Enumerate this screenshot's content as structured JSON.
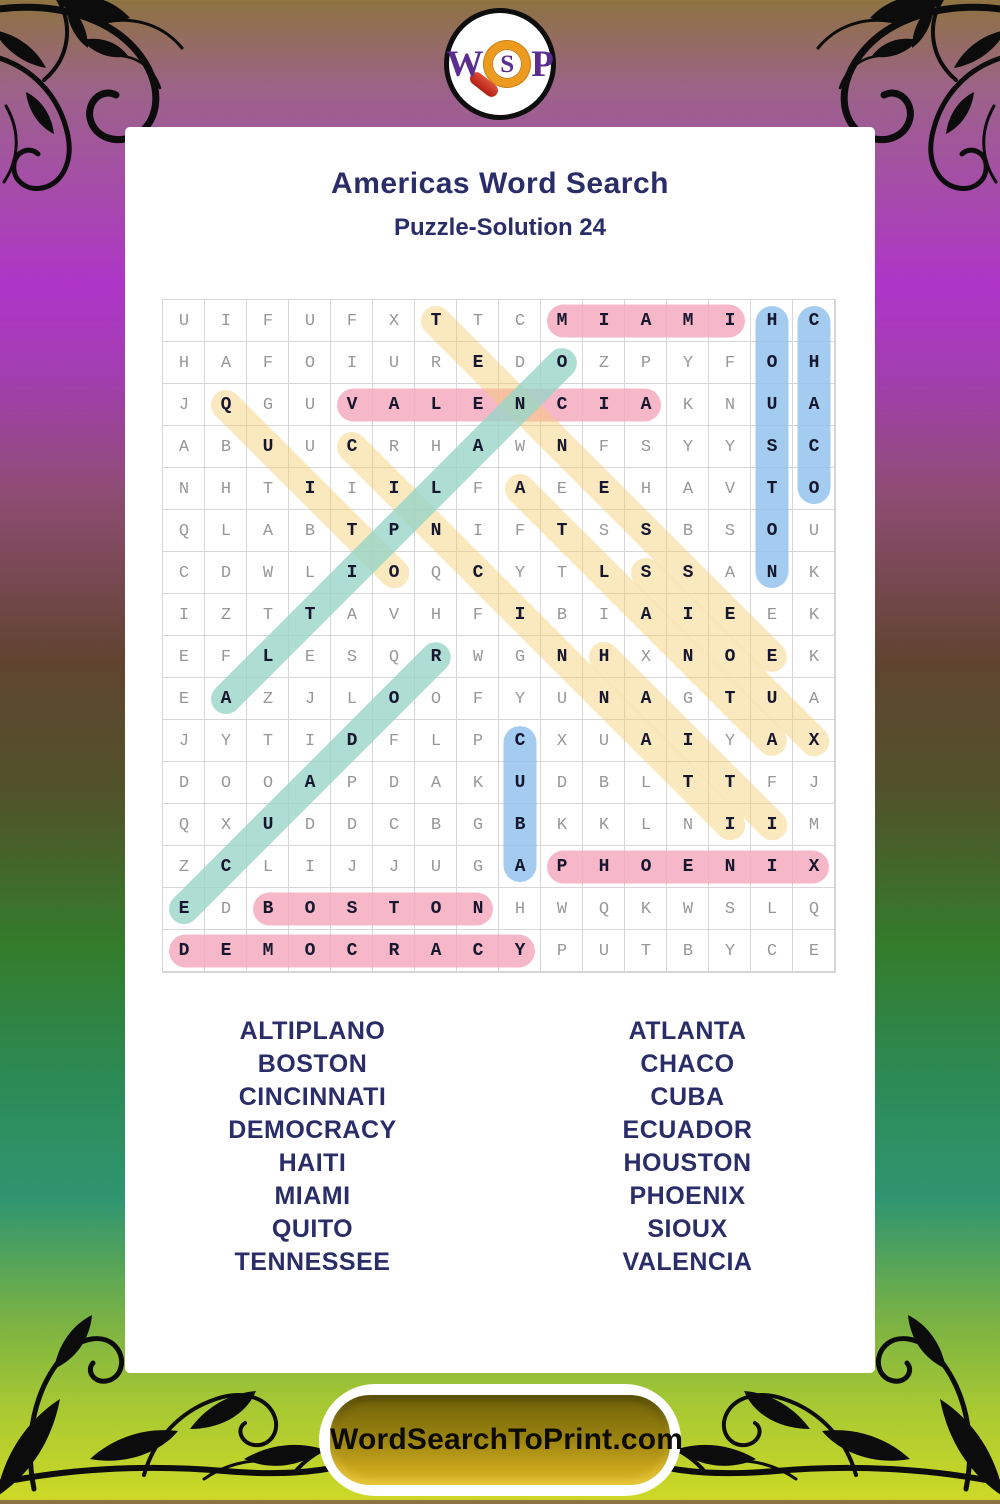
{
  "logo": {
    "letters": {
      "w": "W",
      "s": "S",
      "p": "P"
    }
  },
  "header": {
    "title": "Americas Word Search",
    "subtitle": "Puzzle-Solution 24"
  },
  "grid": {
    "size": 16,
    "rows": [
      "UIFUFXTTCMIAMIHC",
      "HAFOIUREDOZPYFOH",
      "JQGUVALENCIAKNUA",
      "ABUUCRHAWNFSYYSC",
      "NHTIIILFAEEHAVTO",
      "QLABTPNIFTSSBSOU",
      "CDWLIOQCYTLSSANK",
      "IZTTAVHFIBIAIEEK",
      "EFLESQRWGNHXNOEK",
      "EAZJLOOFYUNAGTUA",
      "JYTIDFLPCXUAIYAX",
      "DOOAPDAKUDBLTTFJ",
      "QXUDDCBGBKKLNIIM",
      "ZCLIJJUGAPHOENIX",
      "EDBOSTONHWQKWSLQ",
      "DEMOCRACYPUTBYCE"
    ]
  },
  "solutions": [
    {
      "word": "MIAMI",
      "row": 1,
      "col": 10,
      "dir": "E",
      "color": "pink"
    },
    {
      "word": "VALENCIA",
      "row": 3,
      "col": 5,
      "dir": "E",
      "color": "pink"
    },
    {
      "word": "PHOENIX",
      "row": 14,
      "col": 10,
      "dir": "E",
      "color": "pink"
    },
    {
      "word": "BOSTON",
      "row": 15,
      "col": 3,
      "dir": "E",
      "color": "pink"
    },
    {
      "word": "DEMOCRACY",
      "row": 16,
      "col": 1,
      "dir": "E",
      "color": "pink"
    },
    {
      "word": "HOUSTON",
      "row": 1,
      "col": 15,
      "dir": "S",
      "color": "blue"
    },
    {
      "word": "CHACO",
      "row": 1,
      "col": 16,
      "dir": "S",
      "color": "blue"
    },
    {
      "word": "CUBA",
      "row": 11,
      "col": 9,
      "dir": "S",
      "color": "blue"
    },
    {
      "word": "TENNESSEE",
      "row": 1,
      "col": 7,
      "dir": "SE",
      "color": "yellow"
    },
    {
      "word": "QUITO",
      "row": 3,
      "col": 2,
      "dir": "SE",
      "color": "yellow"
    },
    {
      "word": "CINCINNATI",
      "row": 4,
      "col": 5,
      "dir": "SE",
      "color": "yellow"
    },
    {
      "word": "ATLANTA",
      "row": 5,
      "col": 9,
      "dir": "SE",
      "color": "yellow"
    },
    {
      "word": "SIOUX",
      "row": 7,
      "col": 12,
      "dir": "SE",
      "color": "yellow"
    },
    {
      "word": "HAITI",
      "row": 9,
      "col": 11,
      "dir": "SE",
      "color": "yellow"
    },
    {
      "word": "ALTIPLANO",
      "row": 10,
      "col": 2,
      "dir": "NE",
      "color": "teal"
    },
    {
      "word": "ECUADOR",
      "row": 15,
      "col": 1,
      "dir": "NE",
      "color": "teal"
    }
  ],
  "word_list": {
    "left": [
      "ALTIPLANO",
      "BOSTON",
      "CINCINNATI",
      "DEMOCRACY",
      "HAITI",
      "MIAMI",
      "QUITO",
      "TENNESSEE"
    ],
    "right": [
      "ATLANTA",
      "CHACO",
      "CUBA",
      "ECUADOR",
      "HOUSTON",
      "PHOENIX",
      "SIOUX",
      "VALENCIA"
    ]
  },
  "footer": {
    "button_label": "WordSearchToPrint.com"
  },
  "colors": {
    "pink": "rgba(245,171,190,0.85)",
    "blue": "rgba(148,195,239,0.85)",
    "teal": "rgba(153,213,200,0.80)",
    "yellow": "rgba(244,204,111,0.45)",
    "navy_text": "#2a2d68",
    "grid_letter": "#979797",
    "solution_letter": "#16172f",
    "grid_line": "#d6d6d6",
    "button_gold": "#c7a41c",
    "logo_purple": "#5b2d90",
    "logo_orange": "#ec9b1e",
    "logo_red": "#c1281a"
  }
}
